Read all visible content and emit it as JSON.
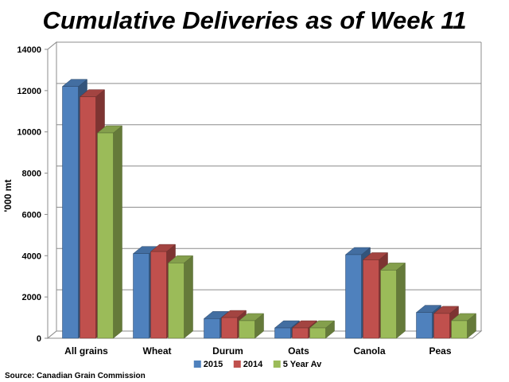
{
  "chart_data": {
    "type": "bar",
    "title": "Cumulative Deliveries as of Week 11",
    "ylabel": "'000 mt",
    "xlabel": "",
    "ylim": [
      0,
      14000
    ],
    "yticks": [
      0,
      2000,
      4000,
      6000,
      8000,
      10000,
      12000,
      14000
    ],
    "categories": [
      "All grains",
      "Wheat",
      "Durum",
      "Oats",
      "Canola",
      "Peas"
    ],
    "series": [
      {
        "name": "2015",
        "color": "#4f81bd",
        "values": [
          12200,
          4100,
          950,
          500,
          4050,
          1250
        ]
      },
      {
        "name": "2014",
        "color": "#c0504d",
        "values": [
          11700,
          4200,
          1000,
          500,
          3800,
          1200
        ]
      },
      {
        "name": "5 Year Av",
        "color": "#9bbb59",
        "values": [
          9950,
          3650,
          850,
          500,
          3300,
          850
        ]
      }
    ],
    "grid": true,
    "legend_position": "bottom",
    "source": "Source: Canadian Grain Commission"
  }
}
